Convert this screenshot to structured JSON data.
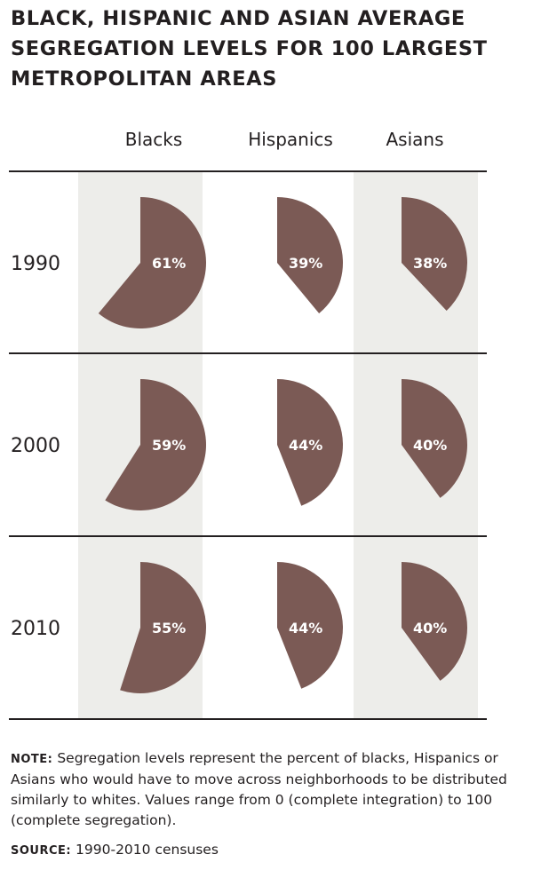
{
  "title": "BLACK, HISPANIC AND ASIAN AVERAGE SEGREGATION LEVELS FOR 100 LARGEST METROPOLITAN AREAS",
  "chart_data": {
    "type": "pie",
    "columns": [
      "Blacks",
      "Hispanics",
      "Asians"
    ],
    "rows": [
      "1990",
      "2000",
      "2010"
    ],
    "values": [
      [
        61,
        39,
        38
      ],
      [
        59,
        44,
        40
      ],
      [
        55,
        44,
        40
      ]
    ],
    "labels": [
      [
        "61%",
        "39%",
        "38%"
      ],
      [
        "59%",
        "44%",
        "40%"
      ],
      [
        "55%",
        "44%",
        "40%"
      ]
    ],
    "value_range": [
      0,
      100
    ],
    "colors": {
      "wedge": "#7b5a55",
      "column_shading": "#ededea",
      "rule": "#231f20",
      "label": "#ffffff"
    }
  },
  "note": {
    "label": "NOTE:",
    "text": " Segregation levels represent the percent of blacks, Hispanics or Asians who would have to move across neighborhoods to be distributed similarly to whites. Values range from 0 (complete integration) to 100 (complete segregation)."
  },
  "source": {
    "label": "SOURCE:",
    "text": " 1990-2010 censuses"
  }
}
